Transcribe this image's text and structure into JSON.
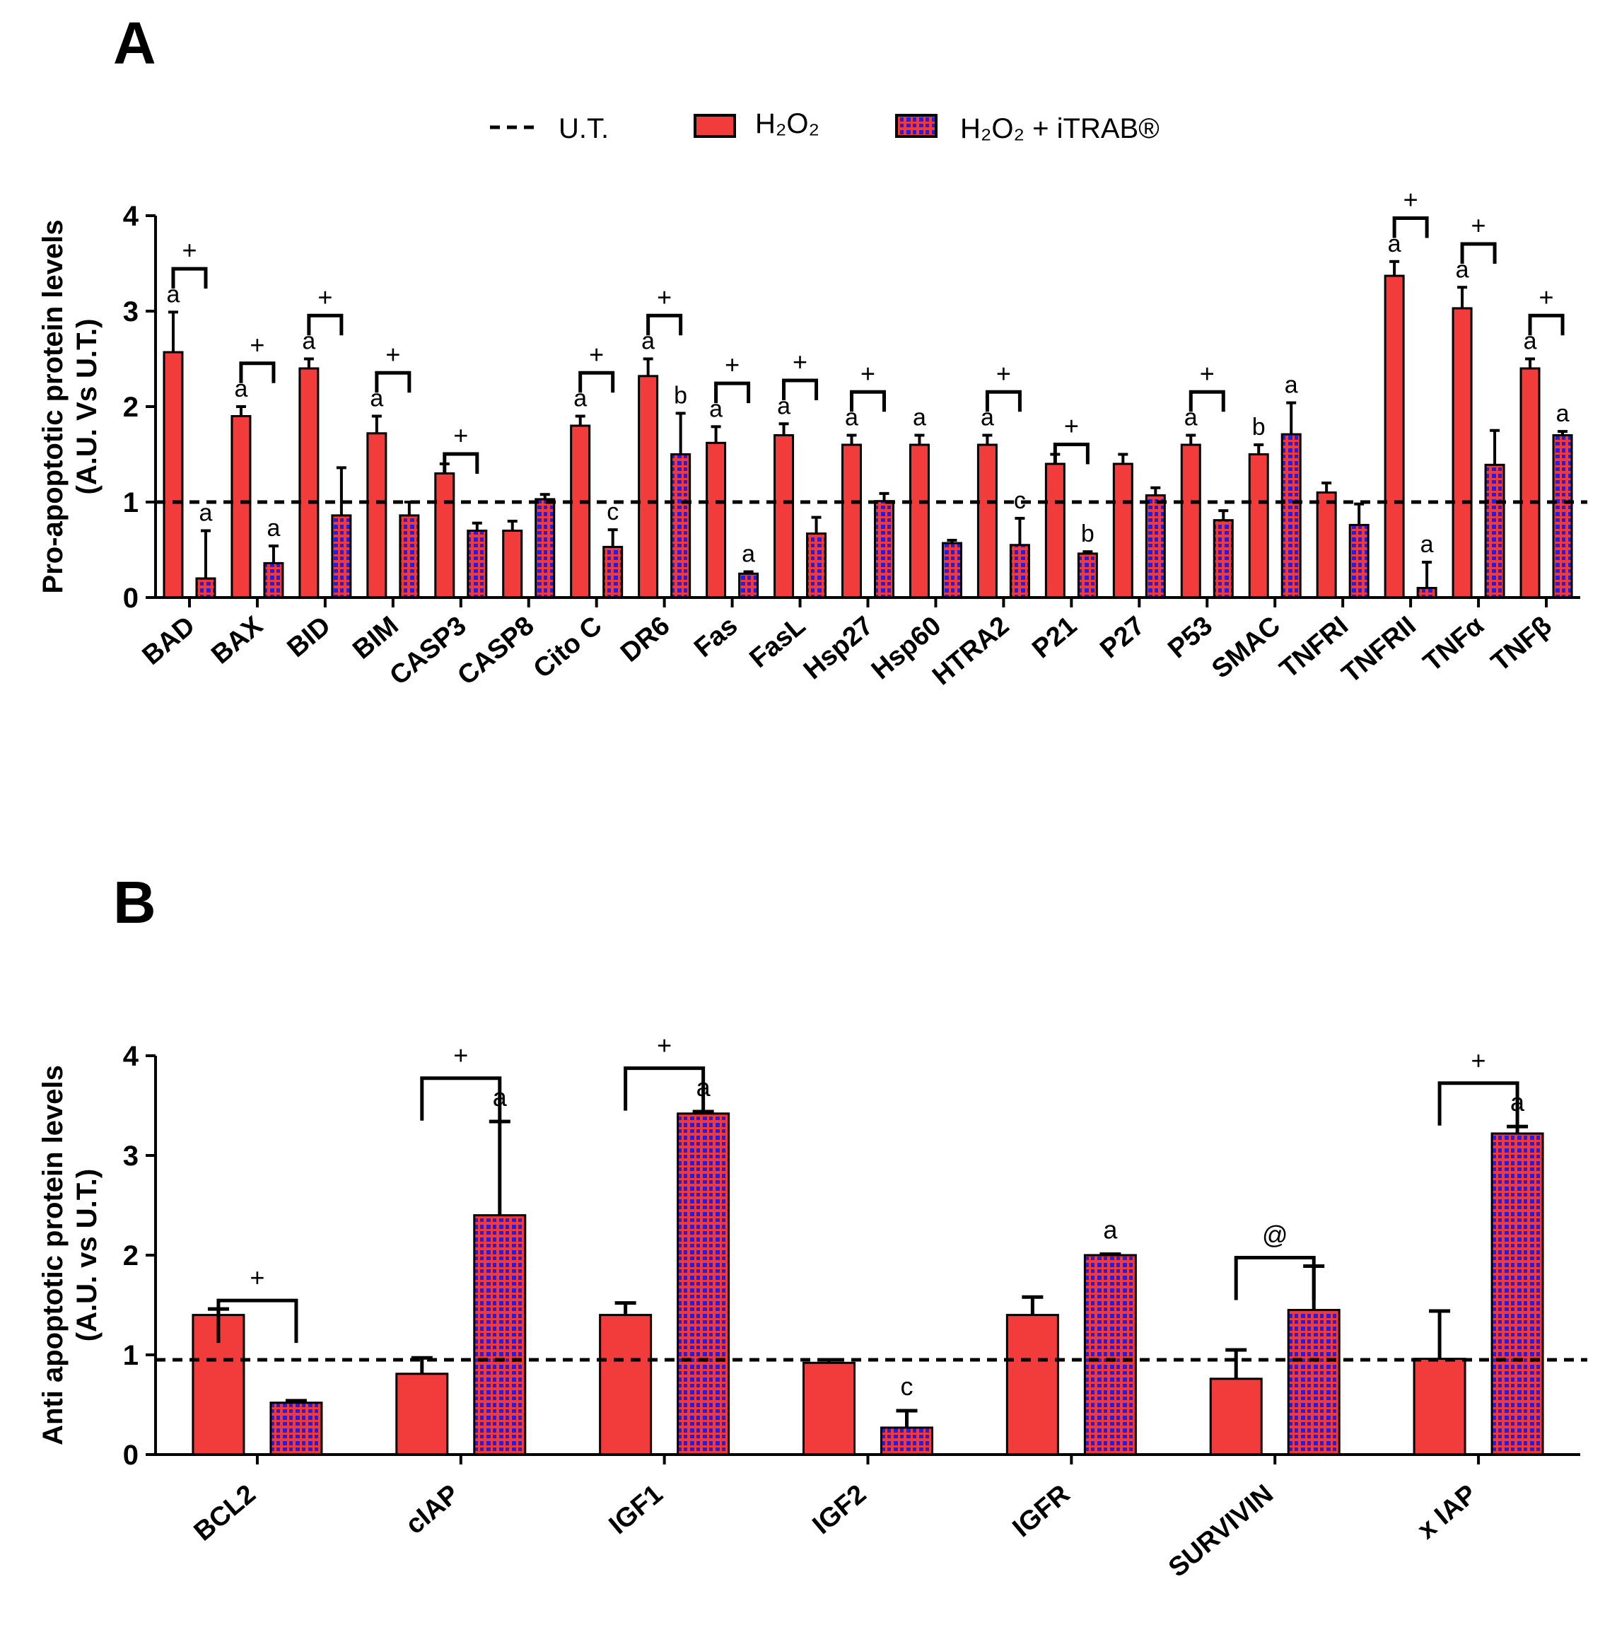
{
  "colors": {
    "h2o2": "#f23c3c",
    "combo_fill": "#f03a3a",
    "combo_check": "#1e1ef0",
    "axis": "#000000"
  },
  "panel_labels": [
    "A",
    "B"
  ],
  "legend": [
    {
      "label": "U.T.",
      "style": "dashed-line"
    },
    {
      "label": "H₂O₂",
      "style": "solid-bar"
    },
    {
      "label": "H₂O₂ + iTRAB®",
      "style": "checkered-bar"
    }
  ],
  "chart_data": [
    {
      "type": "bar",
      "panel": "A",
      "ylabel": "Pro-apoptotic protein levels",
      "ylabel2": "(A.U. Vs U.T.)",
      "ylim": [
        0,
        4
      ],
      "yticks": [
        "0",
        "1",
        "2",
        "3",
        "4"
      ],
      "reference_line": {
        "name": "U.T.",
        "value": 1
      },
      "categories": [
        "BAD",
        "BAX",
        "BID",
        "BIM",
        "CASP3",
        "CASP8",
        "Cito C",
        "DR6",
        "Fas",
        "FasL",
        "Hsp27",
        "Hsp60",
        "HTRA2",
        "P21",
        "P27",
        "P53",
        "SMAC",
        "TNFRI",
        "TNFRII",
        "TNFα",
        "TNFβ"
      ],
      "series": [
        {
          "name": "H₂O₂",
          "values": [
            2.57,
            1.9,
            2.4,
            1.72,
            1.3,
            0.7,
            1.8,
            2.32,
            1.62,
            1.7,
            1.6,
            1.6,
            1.6,
            1.4,
            1.4,
            1.6,
            1.5,
            1.1,
            3.37,
            3.03,
            2.4
          ],
          "errors": [
            0.42,
            0.1,
            0.1,
            0.18,
            0.1,
            0.1,
            0.1,
            0.18,
            0.17,
            0.12,
            0.1,
            0.1,
            0.1,
            0.1,
            0.1,
            0.1,
            0.1,
            0.1,
            0.15,
            0.22,
            0.1
          ],
          "labels": [
            "a",
            "a",
            "a",
            "a",
            "",
            "",
            "a",
            "a",
            "a",
            "a",
            "a",
            "a",
            "a",
            "",
            "",
            "a",
            "b",
            "",
            "a",
            "a",
            "a"
          ]
        },
        {
          "name": "H₂O₂ + iTRAB®",
          "values": [
            0.2,
            0.36,
            0.86,
            0.86,
            0.7,
            1.03,
            0.53,
            1.5,
            0.25,
            0.67,
            1.01,
            0.57,
            0.55,
            0.46,
            1.07,
            0.81,
            1.71,
            0.76,
            0.1,
            1.39,
            1.7
          ],
          "errors": [
            0.5,
            0.18,
            0.5,
            0.14,
            0.08,
            0.05,
            0.18,
            0.43,
            0.02,
            0.17,
            0.08,
            0.03,
            0.28,
            0.02,
            0.08,
            0.1,
            0.33,
            0.22,
            0.27,
            0.36,
            0.04
          ],
          "labels": [
            "a",
            "a",
            "",
            "",
            "",
            "",
            "c",
            "b",
            "a",
            "",
            "",
            "",
            "c",
            "b",
            "",
            "",
            "a",
            "",
            "a",
            "",
            "a"
          ]
        }
      ],
      "significance": [
        {
          "category": "BAD",
          "symbol": "+"
        },
        {
          "category": "BAX",
          "symbol": "+"
        },
        {
          "category": "BID",
          "symbol": "+"
        },
        {
          "category": "BIM",
          "symbol": "+"
        },
        {
          "category": "CASP3",
          "symbol": "+"
        },
        {
          "category": "Cito C",
          "symbol": "+"
        },
        {
          "category": "DR6",
          "symbol": "+"
        },
        {
          "category": "Fas",
          "symbol": "+"
        },
        {
          "category": "FasL",
          "symbol": "+"
        },
        {
          "category": "Hsp27",
          "symbol": "+"
        },
        {
          "category": "HTRA2",
          "symbol": "+"
        },
        {
          "category": "P21",
          "symbol": "+"
        },
        {
          "category": "P53",
          "symbol": "+"
        },
        {
          "category": "TNFRII",
          "symbol": "+"
        },
        {
          "category": "TNFα",
          "symbol": "+"
        },
        {
          "category": "TNFβ",
          "symbol": "+"
        }
      ]
    },
    {
      "type": "bar",
      "panel": "B",
      "ylabel": "Anti apoptotic protein levels",
      "ylabel2": "(A.U. vs U.T.)",
      "ylim": [
        0,
        4
      ],
      "yticks": [
        "0",
        "1",
        "2",
        "3",
        "4"
      ],
      "reference_line": {
        "name": "U.T.",
        "value": 0.95
      },
      "categories": [
        "BCL2",
        "cIAP",
        "IGF1",
        "IGF2",
        "IGFR",
        "SURVIVIN",
        "x IAP"
      ],
      "series": [
        {
          "name": "H₂O₂",
          "values": [
            1.4,
            0.81,
            1.4,
            0.92,
            1.4,
            0.76,
            0.96
          ],
          "errors": [
            0.06,
            0.16,
            0.12,
            0.03,
            0.18,
            0.29,
            0.48
          ],
          "labels": [
            "",
            "",
            "",
            "",
            "",
            "",
            ""
          ]
        },
        {
          "name": "H₂O₂ + iTRAB®",
          "values": [
            0.52,
            2.4,
            3.42,
            0.27,
            2.0,
            1.45,
            3.22
          ],
          "errors": [
            0.02,
            0.94,
            0.02,
            0.17,
            0.01,
            0.44,
            0.07
          ],
          "labels": [
            "",
            "a",
            "a",
            "c",
            "a",
            "",
            "a"
          ]
        }
      ],
      "significance": [
        {
          "category": "BCL2",
          "symbol": "+"
        },
        {
          "category": "cIAP",
          "symbol": "+"
        },
        {
          "category": "IGF1",
          "symbol": "+"
        },
        {
          "category": "SURVIVIN",
          "symbol": "@"
        },
        {
          "category": "x IAP",
          "symbol": "+"
        }
      ]
    }
  ]
}
